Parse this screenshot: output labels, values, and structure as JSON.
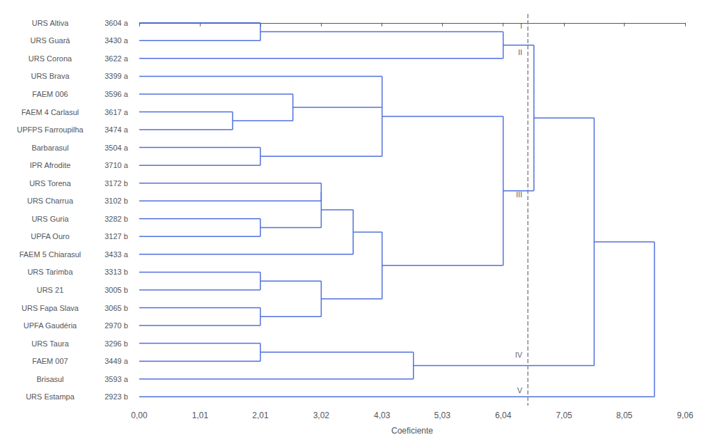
{
  "chart_data": {
    "type": "dendrogram",
    "x_label": "Coeficiente",
    "categories": [
      "URS Altiva",
      "URS Guará",
      "URS Corona",
      "URS Brava",
      "FAEM 006",
      "FAEM 4 Carlasul",
      "UPFPS Farroupilha",
      "Barbarasul",
      "IPR Afrodite",
      "URS Torena",
      "URS Charrua",
      "URS Guria",
      "UPFA Ouro",
      "FAEM 5 Chiarasul",
      "URS Tarimba",
      "URS 21",
      "URS Fapa Slava",
      "UPFA Gaudéria",
      "URS Taura",
      "FAEM 007",
      "Brisasul",
      "URS Estampa"
    ],
    "leaf_labels": [
      "3604 a",
      "3430 a",
      "3622 a",
      "3399 a",
      "3596 a",
      "3617 a",
      "3474 a",
      "3504 a",
      "3710 a",
      "3172 b",
      "3102 b",
      "3282 b",
      "3127 b",
      "3433 a",
      "3313 b",
      "3005 b",
      "3065 b",
      "2970 b",
      "3296 b",
      "3449 a",
      "3593 a",
      "2923 b"
    ],
    "xlim": [
      0,
      9.06
    ],
    "xticks": [
      {
        "value": 0.0,
        "label": "0,00"
      },
      {
        "value": 1.01,
        "label": "1,01"
      },
      {
        "value": 2.01,
        "label": "2,01"
      },
      {
        "value": 3.02,
        "label": "3,02"
      },
      {
        "value": 4.03,
        "label": "4,03"
      },
      {
        "value": 5.03,
        "label": "5,03"
      },
      {
        "value": 6.04,
        "label": "6,04"
      },
      {
        "value": 7.05,
        "label": "7,05"
      },
      {
        "value": 8.05,
        "label": "8,05"
      },
      {
        "value": 9.06,
        "label": "9,06"
      }
    ],
    "grid": false,
    "reference_line": {
      "x": 6.45,
      "line_style": "dashed"
    },
    "tree": {
      "height": 8.55,
      "children": [
        {
          "height": 7.55,
          "children": [
            {
              "height": 6.55,
              "children": [
                {
                  "height": 6.04,
                  "children": [
                    {
                      "height": 2.01,
                      "children": [
                        "URS Altiva",
                        "URS Guará"
                      ]
                    },
                    "URS Corona"
                  ]
                },
                {
                  "height": 6.04,
                  "children": [
                    {
                      "height": 4.03,
                      "children": [
                        "URS Brava",
                        {
                          "height": 2.55,
                          "children": [
                            "FAEM 006",
                            {
                              "height": 1.55,
                              "children": [
                                "FAEM 4 Carlasul",
                                "UPFPS Farroupilha"
                              ]
                            }
                          ]
                        },
                        {
                          "height": 2.01,
                          "children": [
                            "Barbarasul",
                            "IPR Afrodite"
                          ]
                        }
                      ]
                    },
                    {
                      "height": 4.03,
                      "children": [
                        {
                          "height": 3.55,
                          "children": [
                            {
                              "height": 3.02,
                              "children": [
                                {
                                  "height": 3.02,
                                  "children": [
                                    "URS Torena",
                                    "URS Charrua"
                                  ]
                                },
                                {
                                  "height": 2.01,
                                  "children": [
                                    "URS Guria",
                                    "UPFA Ouro"
                                  ]
                                }
                              ]
                            },
                            "FAEM 5 Chiarasul"
                          ]
                        },
                        {
                          "height": 3.02,
                          "children": [
                            {
                              "height": 2.01,
                              "children": [
                                "URS Tarimba",
                                "URS 21"
                              ]
                            },
                            {
                              "height": 2.01,
                              "children": [
                                "URS Fapa Slava",
                                "UPFA Gaudéria"
                              ]
                            }
                          ]
                        }
                      ]
                    }
                  ]
                }
              ]
            },
            {
              "height": 4.55,
              "children": [
                {
                  "height": 2.01,
                  "children": [
                    "URS Taura",
                    "FAEM 007"
                  ]
                },
                "Brisasul"
              ]
            }
          ]
        },
        "URS Estampa"
      ]
    },
    "groups": [
      {
        "label": "I",
        "members": [
          "URS Altiva",
          "URS Guará"
        ]
      },
      {
        "label": "II",
        "members": [
          "URS Corona"
        ]
      },
      {
        "label": "III",
        "members": [
          "URS Brava",
          "FAEM 006",
          "FAEM 4 Carlasul",
          "UPFPS Farroupilha",
          "Barbarasul",
          "IPR Afrodite",
          "URS Torena",
          "URS Charrua",
          "URS Guria",
          "UPFA Ouro",
          "FAEM 5 Chiarasul",
          "URS Tarimba",
          "URS 21",
          "URS Fapa Slava",
          "UPFA Gaudéria"
        ]
      },
      {
        "label": "IV",
        "members": [
          "URS Taura",
          "FAEM 007",
          "Brisasul"
        ]
      },
      {
        "label": "V",
        "members": [
          "URS Estampa"
        ]
      }
    ]
  }
}
